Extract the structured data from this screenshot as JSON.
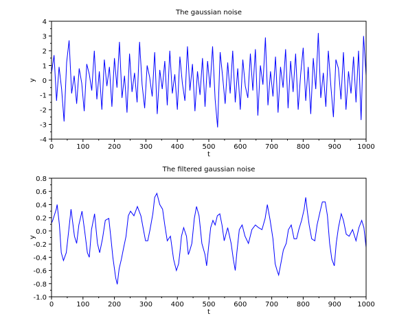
{
  "chart_data": [
    {
      "type": "line",
      "title": "The gaussian noise",
      "xlabel": "t",
      "ylabel": "y",
      "xlim": [
        0,
        1000
      ],
      "ylim": [
        -4,
        4
      ],
      "xticks": [
        "0",
        "100",
        "200",
        "300",
        "400",
        "500",
        "600",
        "700",
        "800",
        "900",
        "1000"
      ],
      "yticks": [
        "-4",
        "-3",
        "-2",
        "-1",
        "0",
        "1",
        "2",
        "3",
        "4"
      ],
      "grid": false,
      "color": "#0000ff",
      "x_step": 8,
      "values": [
        0.5,
        1.7,
        -1.4,
        0.9,
        -0.6,
        -2.8,
        1.2,
        2.7,
        -0.9,
        0.3,
        -1.6,
        0.8,
        -0.2,
        -2.1,
        1.1,
        0.4,
        -0.7,
        2.0,
        -1.3,
        0.6,
        -2.0,
        1.4,
        -0.4,
        0.9,
        -1.8,
        1.5,
        -0.5,
        2.6,
        -1.2,
        0.3,
        -2.2,
        1.8,
        -0.8,
        0.5,
        -1.5,
        2.6,
        -0.3,
        -1.9,
        1.0,
        0.2,
        -1.1,
        1.9,
        -2.3,
        0.7,
        -0.6,
        1.3,
        -1.7,
        2.0,
        -0.9,
        0.4,
        -2.0,
        1.6,
        -0.2,
        -1.4,
        2.3,
        -0.7,
        1.1,
        -2.1,
        0.6,
        -1.0,
        1.5,
        -1.8,
        1.3,
        -0.5,
        2.3,
        -1.3,
        -3.2,
        1.9,
        0.2,
        -1.6,
        1.2,
        -0.9,
        2.0,
        -1.5,
        0.8,
        -2.0,
        1.4,
        -0.4,
        -1.2,
        1.8,
        -0.7,
        2.1,
        -2.4,
        1.0,
        -0.3,
        2.9,
        -1.7,
        0.6,
        -1.1,
        1.6,
        -2.2,
        0.9,
        -0.5,
        2.1,
        -1.9,
        1.3,
        -0.8,
        1.8,
        -2.0,
        0.4,
        2.2,
        -1.4,
        0.9,
        -2.3,
        1.5,
        -0.6,
        3.2,
        -1.2,
        0.5,
        -1.8,
        2.0,
        -0.4,
        -2.5,
        1.4,
        0.8,
        -1.3,
        1.9,
        -2.0,
        0.6,
        -0.9,
        1.6,
        -1.5,
        2.0,
        -2.7,
        3.0,
        0.3,
        -1.6
      ]
    },
    {
      "type": "line",
      "title": "The filtered gaussian noise",
      "xlabel": "t",
      "ylabel": "y",
      "xlim": [
        0,
        1000
      ],
      "ylim": [
        -1.0,
        0.8
      ],
      "xticks": [
        "0",
        "100",
        "200",
        "300",
        "400",
        "500",
        "600",
        "700",
        "800",
        "900",
        "1000"
      ],
      "yticks": [
        "-1.0",
        "-0.8",
        "-0.6",
        "-0.4",
        "-0.2",
        "0.0",
        "0.2",
        "0.4",
        "0.6",
        "0.8"
      ],
      "grid": false,
      "color": "#0000ff",
      "x": [
        0,
        4,
        15,
        18,
        25,
        31,
        38,
        47,
        55,
        62,
        73,
        80,
        87,
        97,
        106,
        114,
        120,
        127,
        137,
        146,
        153,
        162,
        171,
        182,
        189,
        195,
        204,
        209,
        215,
        222,
        229,
        237,
        244,
        251,
        262,
        273,
        284,
        291,
        299,
        306,
        313,
        322,
        328,
        335,
        344,
        353,
        360,
        368,
        378,
        388,
        397,
        404,
        408,
        413,
        420,
        429,
        435,
        440,
        446,
        454,
        461,
        469,
        478,
        488,
        493,
        499,
        506,
        513,
        520,
        527,
        535,
        542,
        549,
        560,
        571,
        578,
        584,
        589,
        597,
        606,
        615,
        626,
        637,
        648,
        658,
        669,
        679,
        686,
        695,
        704,
        711,
        717,
        722,
        730,
        737,
        746,
        753,
        762,
        771,
        779,
        786,
        795,
        803,
        808,
        813,
        819,
        827,
        837,
        844,
        854,
        861,
        870,
        877,
        884,
        891,
        899,
        905,
        912,
        921,
        928,
        937,
        946,
        957,
        968,
        977,
        986,
        993,
        1000
      ],
      "y": [
        0.12,
        0.16,
        0.33,
        0.4,
        0.09,
        -0.33,
        -0.45,
        -0.33,
        0.02,
        0.33,
        -0.08,
        -0.19,
        0.09,
        0.3,
        -0.02,
        -0.33,
        -0.4,
        0.02,
        0.26,
        -0.19,
        -0.33,
        -0.12,
        0.16,
        0.19,
        -0.12,
        -0.4,
        -0.71,
        -0.81,
        -0.57,
        -0.43,
        -0.26,
        -0.08,
        0.23,
        0.3,
        0.23,
        0.37,
        0.23,
        0.05,
        -0.15,
        -0.15,
        0.02,
        0.26,
        0.51,
        0.57,
        0.4,
        0.33,
        0.09,
        -0.15,
        -0.08,
        -0.43,
        -0.6,
        -0.5,
        -0.33,
        -0.08,
        0.05,
        -0.08,
        -0.36,
        -0.29,
        -0.19,
        0.19,
        0.37,
        0.23,
        -0.19,
        -0.36,
        -0.53,
        -0.26,
        0.05,
        0.16,
        0.09,
        0.23,
        0.26,
        0.09,
        -0.15,
        0.05,
        -0.19,
        -0.43,
        -0.6,
        -0.33,
        0.02,
        0.09,
        -0.08,
        -0.19,
        0.02,
        0.09,
        0.05,
        0.02,
        0.19,
        0.4,
        0.16,
        -0.12,
        -0.5,
        -0.6,
        -0.67,
        -0.47,
        -0.29,
        -0.19,
        0.02,
        0.09,
        -0.12,
        -0.12,
        0.02,
        0.16,
        0.33,
        0.51,
        0.3,
        0.09,
        -0.12,
        -0.15,
        0.09,
        0.3,
        0.44,
        0.44,
        0.23,
        -0.19,
        -0.43,
        -0.53,
        -0.19,
        0.05,
        0.26,
        0.16,
        -0.05,
        -0.08,
        0.02,
        -0.15,
        0.05,
        0.16,
        0.05,
        -0.25
      ]
    }
  ]
}
